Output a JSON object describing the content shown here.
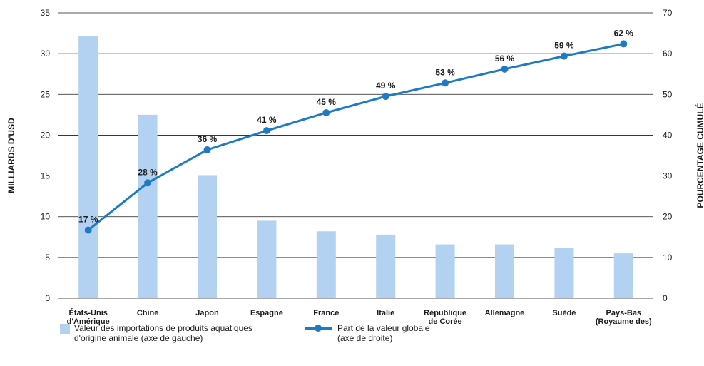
{
  "chart_data": {
    "type": "bar+line",
    "categories": [
      "États-Unis\nd'Amérique",
      "Chine",
      "Japon",
      "Espagne",
      "France",
      "Italie",
      "République\nde Corée",
      "Allemagne",
      "Suède",
      "Pays-Bas\n(Royaume des)"
    ],
    "series": [
      {
        "name": "Valeur des importations de produits aquatiques\nd'origine animale (axe de gauche)",
        "type": "bar",
        "axis": "left",
        "values": [
          32.2,
          22.5,
          15.1,
          9.5,
          8.2,
          7.8,
          6.6,
          6.6,
          6.2,
          5.5
        ]
      },
      {
        "name": "Part de la valeur globale\n(axe de droite)",
        "type": "line",
        "axis": "right",
        "values": [
          16.7,
          28.3,
          36.4,
          41.1,
          45.5,
          49.5,
          52.8,
          56.2,
          59.4,
          62.4
        ],
        "labels": [
          "17 %",
          "28 %",
          "36 %",
          "41 %",
          "45 %",
          "49 %",
          "53 %",
          "56 %",
          "59 %",
          "62 %"
        ]
      }
    ],
    "ylabel": "MILLIARDS D'USD",
    "y2label": "POURCENTAGE CUMULÉ",
    "ylim": [
      0,
      35
    ],
    "y2lim": [
      0,
      70
    ],
    "yticks": [
      "0",
      "5",
      "10",
      "15",
      "20",
      "25",
      "30",
      "35"
    ],
    "y2ticks": [
      "0",
      "10",
      "20",
      "30",
      "40",
      "50",
      "60",
      "70"
    ],
    "grid": true,
    "legend": "bottom",
    "colors": {
      "bar": "#b3d1f1",
      "line": "#1f7ac4",
      "grid": "#1a1a1a"
    }
  }
}
